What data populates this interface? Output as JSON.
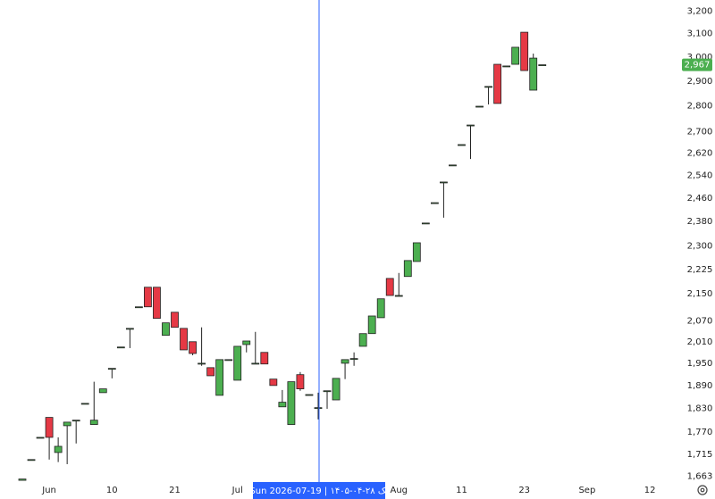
{
  "chart_data": {
    "type": "candlestick",
    "log": true,
    "grid": false,
    "up_color": "#4caf50",
    "down_color": "#e53945",
    "categories": [
      null,
      null,
      null,
      "Jun",
      null,
      null,
      null,
      null,
      null,
      null,
      "10",
      null,
      null,
      null,
      null,
      null,
      null,
      "21",
      null,
      null,
      null,
      null,
      null,
      null,
      "Jul",
      null,
      null,
      null,
      null,
      null,
      null,
      null,
      null,
      null,
      null,
      null,
      null,
      null,
      null,
      null,
      null,
      null,
      "Aug",
      null,
      null,
      null,
      null,
      null,
      null,
      "11",
      null,
      null,
      null,
      null,
      null,
      null,
      "23",
      null,
      null,
      null,
      null,
      null,
      null,
      "Sep",
      null,
      null,
      null,
      null,
      null,
      null,
      "12"
    ],
    "open": [
      1654,
      1703,
      1757,
      1807,
      1720,
      1786,
      1800,
      1843,
      1789,
      1871,
      1936,
      1995,
      2048,
      2111,
      2170,
      2170,
      2028,
      2095,
      2048,
      2010,
      1950,
      1938,
      1864,
      1960,
      1904,
      2002,
      1950,
      1980,
      1907,
      1834,
      1789,
      1919,
      1866,
      1832,
      1876,
      1852,
      1950,
      1963,
      1997,
      2033,
      2079,
      2197,
      2145,
      2203,
      2250,
      2375,
      2444,
      2516,
      2577,
      2652,
      2726,
      2799,
      2878,
      2969,
      2962,
      2969,
      3106,
      2863,
      2967,
      null,
      null,
      null,
      null,
      null,
      null,
      null,
      null,
      null,
      null,
      null,
      null
    ],
    "high": [
      1657,
      1703,
      1757,
      1807,
      1757,
      1795,
      1800,
      1843,
      1900,
      1881,
      1936,
      1995,
      2048,
      2111,
      2170,
      2170,
      2064,
      2095,
      2048,
      2010,
      2051,
      1938,
      1960,
      1960,
      1997,
      2012,
      2038,
      1980,
      1907,
      1878,
      1900,
      1926,
      1866,
      1871,
      1876,
      1909,
      1960,
      1980,
      2033,
      2084,
      2135,
      2197,
      2214,
      2253,
      2310,
      2375,
      2444,
      2516,
      2577,
      2652,
      2726,
      2799,
      2878,
      2969,
      2962,
      3041,
      3106,
      3014,
      2967,
      null,
      null,
      null,
      null,
      null,
      null,
      null,
      null,
      null,
      null,
      null,
      null
    ],
    "low": [
      1654,
      1703,
      1757,
      1703,
      1697,
      1692,
      1742,
      1843,
      1789,
      1871,
      1909,
      1995,
      1992,
      2111,
      2111,
      2077,
      2028,
      2051,
      1987,
      1972,
      1943,
      1916,
      1864,
      1960,
      1904,
      1980,
      1950,
      1948,
      1890,
      1834,
      1789,
      1876,
      1866,
      1802,
      1829,
      1852,
      1907,
      1943,
      1997,
      2033,
      2079,
      2145,
      2145,
      2203,
      2250,
      2375,
      2444,
      2393,
      2577,
      2652,
      2599,
      2799,
      2806,
      2810,
      2962,
      2969,
      2943,
      2863,
      2967,
      null,
      null,
      null,
      null,
      null,
      null,
      null,
      null,
      null,
      null,
      null,
      null
    ],
    "close": [
      1657,
      1703,
      1757,
      1757,
      1735,
      1795,
      1800,
      1843,
      1800,
      1881,
      1936,
      1995,
      2048,
      2111,
      2111,
      2077,
      2064,
      2051,
      1987,
      1977,
      1950,
      1916,
      1960,
      1960,
      1997,
      2012,
      1950,
      1948,
      1890,
      1846,
      1900,
      1881,
      1866,
      1832,
      1876,
      1909,
      1960,
      1963,
      2033,
      2084,
      2135,
      2145,
      2145,
      2253,
      2310,
      2375,
      2444,
      2516,
      2577,
      2652,
      2726,
      2799,
      2878,
      2810,
      2962,
      3041,
      2943,
      2995,
      2967,
      null,
      null,
      null,
      null,
      null,
      null,
      null,
      null,
      null,
      null,
      null,
      null
    ],
    "ylim": [
      1650,
      3250
    ],
    "yticks": [
      {
        "value": 1663,
        "label": "1,663"
      },
      {
        "value": 1715,
        "label": "1,715"
      },
      {
        "value": 1770,
        "label": "1,770"
      },
      {
        "value": 1830,
        "label": "1,830"
      },
      {
        "value": 1890,
        "label": "1,890"
      },
      {
        "value": 1950,
        "label": "1,950"
      },
      {
        "value": 2010,
        "label": "2,010"
      },
      {
        "value": 2070,
        "label": "2,070"
      },
      {
        "value": 2150,
        "label": "2,150"
      },
      {
        "value": 2225,
        "label": "2,225"
      },
      {
        "value": 2300,
        "label": "2,300"
      },
      {
        "value": 2380,
        "label": "2,380"
      },
      {
        "value": 2460,
        "label": "2,460"
      },
      {
        "value": 2540,
        "label": "2,540"
      },
      {
        "value": 2620,
        "label": "2,620"
      },
      {
        "value": 2700,
        "label": "2,700"
      },
      {
        "value": 2800,
        "label": "2,800"
      },
      {
        "value": 2900,
        "label": "2,900"
      },
      {
        "value": 3000,
        "label": "3,000"
      },
      {
        "value": 3100,
        "label": "3,100"
      },
      {
        "value": 3200,
        "label": "3,200"
      }
    ],
    "last_price": {
      "value": 2967,
      "label": "2,967"
    },
    "crosshair_label": "Sun 2026-07-19 | ۱۴۰۵-۰۴-۲۸ یک"
  }
}
